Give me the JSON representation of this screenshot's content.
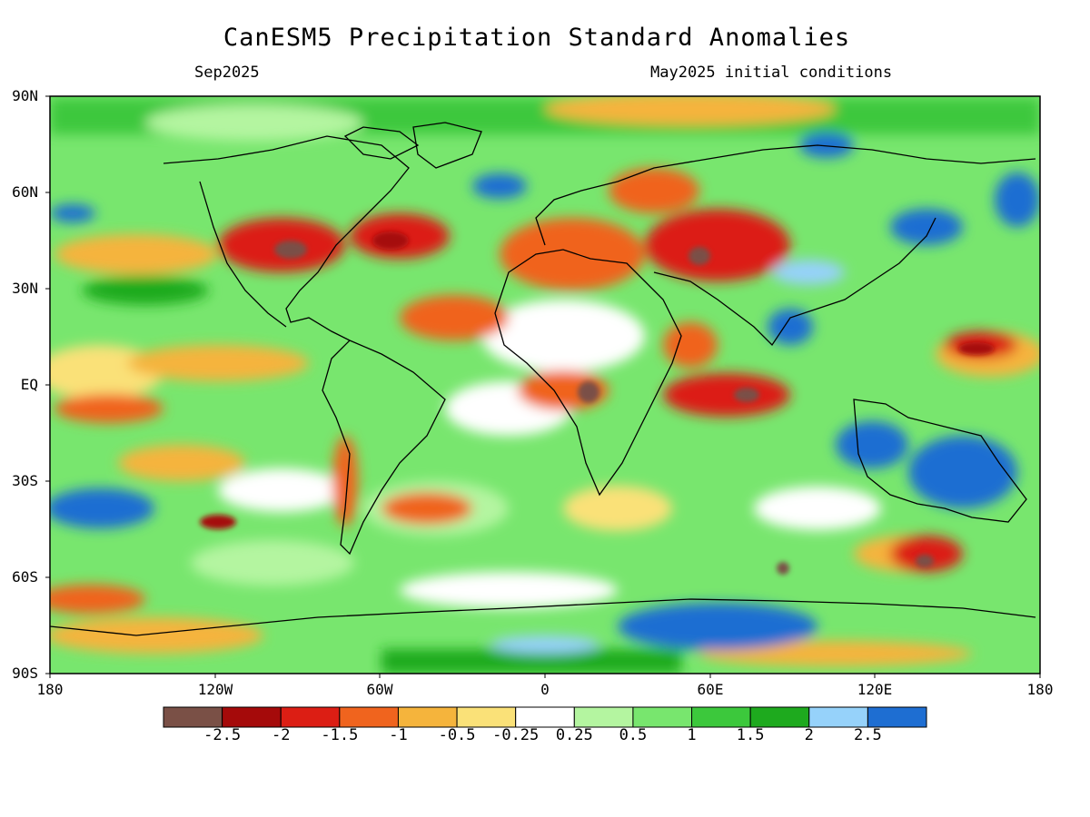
{
  "title": "CanESM5 Precipitation Standard Anomalies",
  "subtitle_left": "Sep2025",
  "subtitle_right": "May2025 initial conditions",
  "lat_labels": [
    "90N",
    "60N",
    "30N",
    "EQ",
    "30S",
    "60S",
    "90S"
  ],
  "lon_labels": [
    "180",
    "120W",
    "60W",
    "0",
    "60E",
    "120E",
    "180"
  ],
  "colorbar": {
    "colors": [
      "#7a5046",
      "#a50a0a",
      "#dc1e14",
      "#f0641e",
      "#f5b43c",
      "#fae178",
      "#ffffff",
      "#b4f5a0",
      "#78e66e",
      "#3cc83c",
      "#1eaa1e",
      "#96d2fa",
      "#1e6ed2"
    ],
    "labels": [
      "-2.5",
      "-2",
      "-1.5",
      "-1",
      "-0.5",
      "-0.25",
      "0.25",
      "0.5",
      "1",
      "1.5",
      "2",
      "2.5"
    ]
  }
}
